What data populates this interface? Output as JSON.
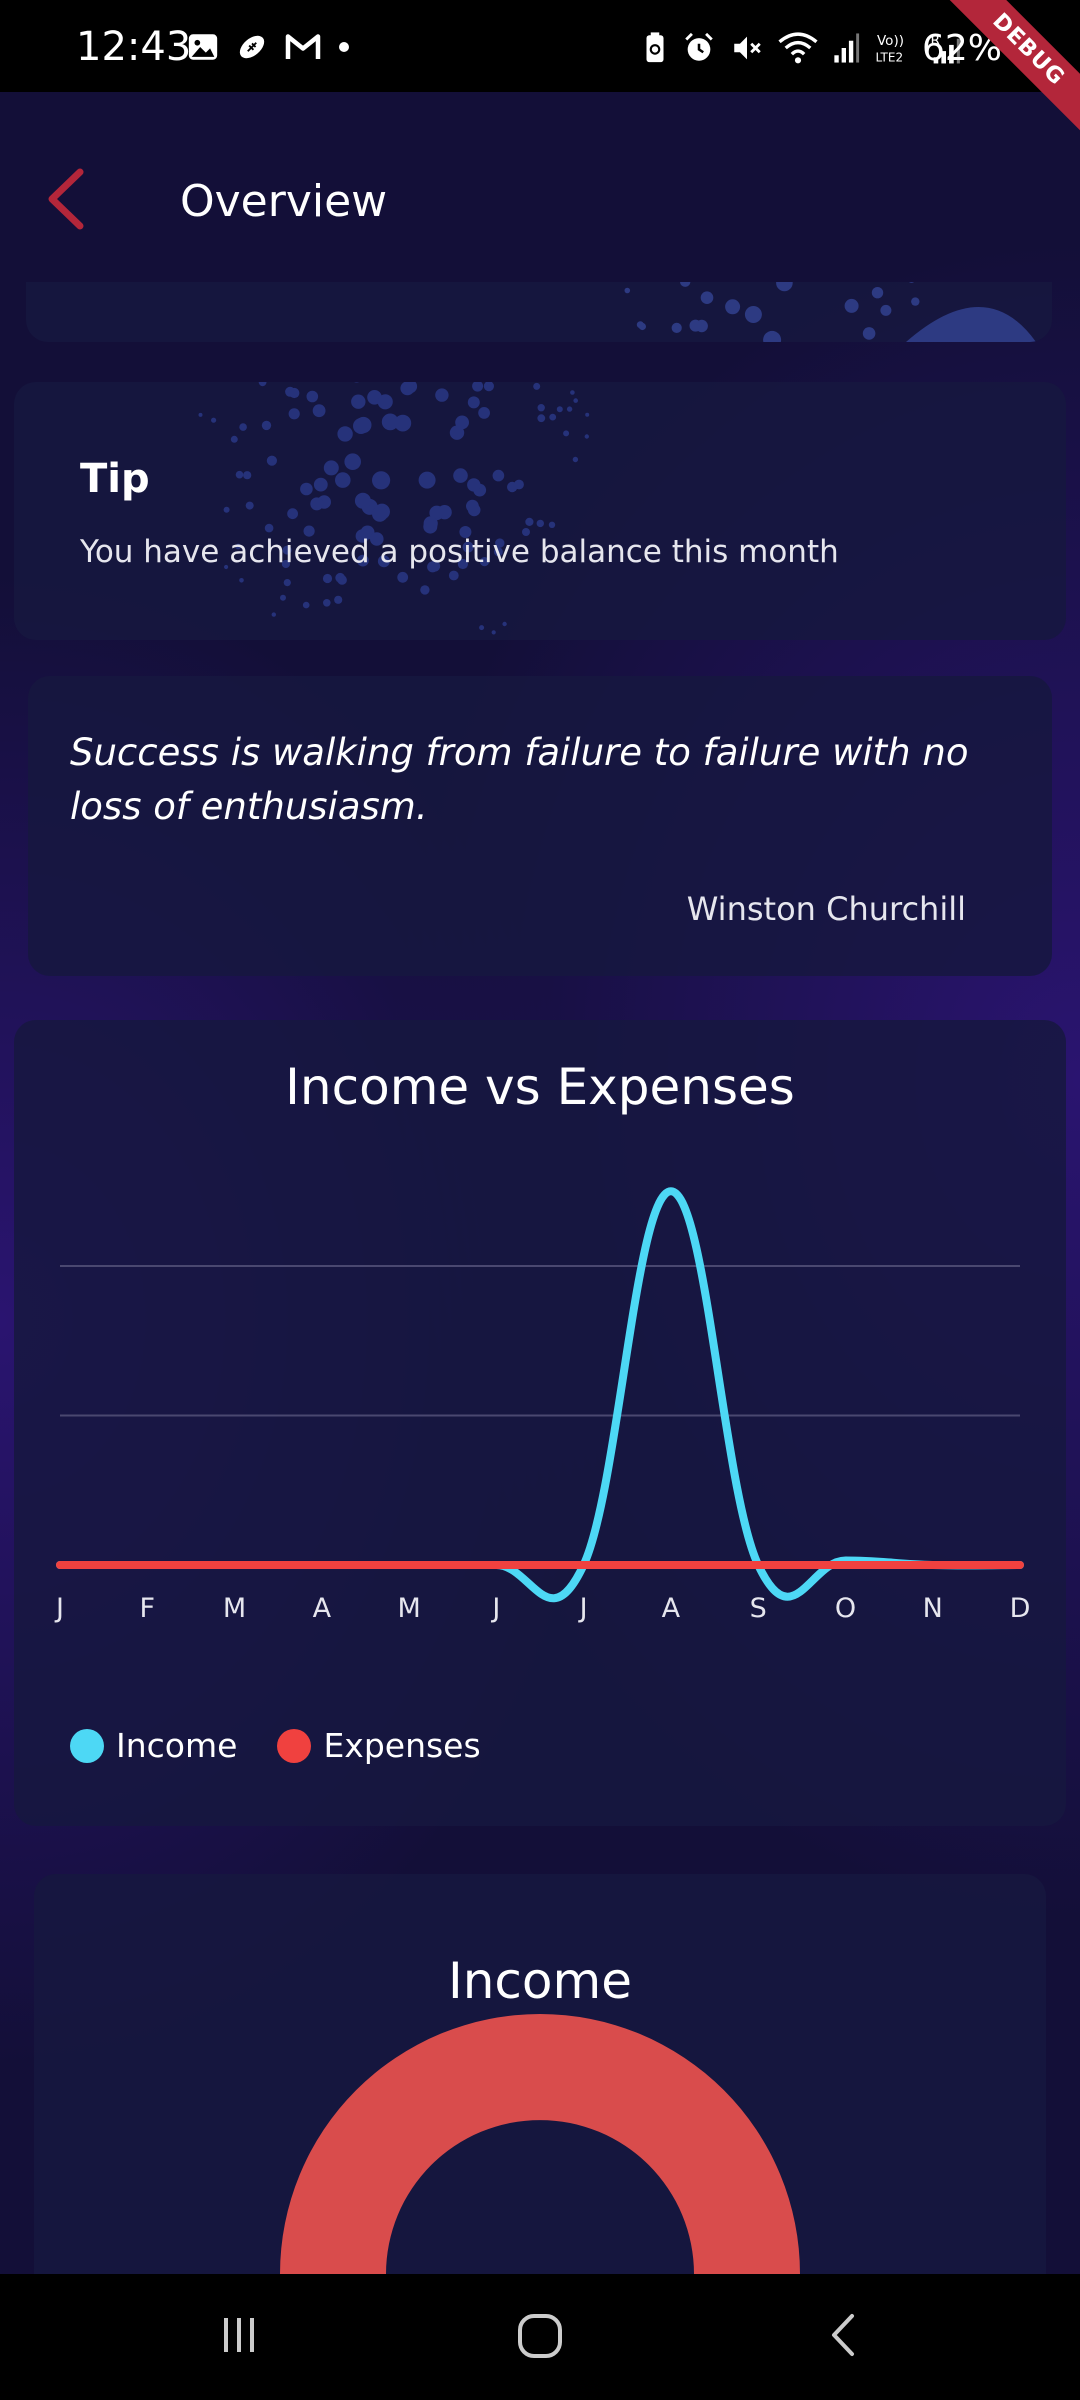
{
  "status_bar": {
    "time": "12:43",
    "battery": "62%",
    "debug_label": "DEBUG",
    "left_icons": [
      "image-icon",
      "football-icon",
      "gmail-icon",
      "dot-icon"
    ],
    "right_icons": [
      "battery-saver-icon",
      "alarm-icon",
      "mute-icon",
      "wifi-icon",
      "signal-icon",
      "volte-icon",
      "signal-roaming-icon"
    ]
  },
  "app_bar": {
    "title": "Overview"
  },
  "tip_card": {
    "title": "Tip",
    "text": "You have achieved a positive balance this month"
  },
  "quote_card": {
    "quote": "Success is walking from failure to failure with no loss of enthusiasm.",
    "author": "Winston Churchill"
  },
  "chart_section": {
    "title": "Income vs Expenses",
    "legend": [
      {
        "label": "Income",
        "color": "#4dd8f5"
      },
      {
        "label": "Expenses",
        "color": "#f0413f"
      }
    ]
  },
  "chart_data": {
    "type": "line",
    "title": "Income vs Expenses",
    "categories": [
      "J",
      "F",
      "M",
      "A",
      "M",
      "J",
      "J",
      "A",
      "S",
      "O",
      "N",
      "D"
    ],
    "series": [
      {
        "name": "Income",
        "color": "#4dd8f5",
        "values": [
          0,
          0,
          0,
          0,
          0,
          0,
          0,
          2.5,
          0,
          0.03,
          0,
          0
        ]
      },
      {
        "name": "Expenses",
        "color": "#f0413f",
        "values": [
          0,
          0,
          0,
          0,
          0,
          0,
          0,
          0,
          0,
          0,
          0,
          0
        ]
      }
    ],
    "ylim": [
      0,
      2
    ],
    "grid": true,
    "legend": "bottom-left"
  },
  "income_section": {
    "title": "Income",
    "donut_color": "#d94c4c"
  },
  "nav_bar": {
    "buttons": [
      "recents-icon",
      "home-icon",
      "back-icon"
    ]
  }
}
